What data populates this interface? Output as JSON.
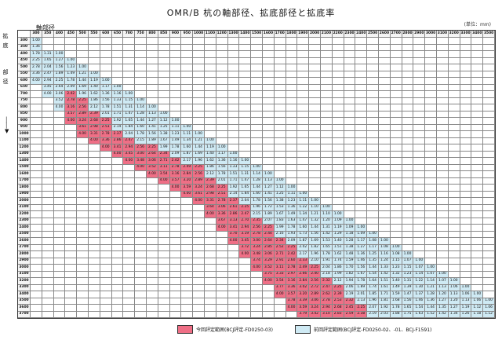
{
  "title": "OMR/B 杭の軸部径、拡底部径と拡底率",
  "unit": "(単位：mm)",
  "axis": {
    "shaft": "軸部径",
    "side_a": "拡底",
    "side_b": "部径"
  },
  "columns": [
    "300",
    "350",
    "400",
    "450",
    "500",
    "550",
    "600",
    "650",
    "700",
    "750",
    "800",
    "850",
    "900",
    "950",
    "1000",
    "1100",
    "1200",
    "1300",
    "1400",
    "1500",
    "1600",
    "1700",
    "1800",
    "1900",
    "2000",
    "2100",
    "2200",
    "2300",
    "2400",
    "2500",
    "2600",
    "2700",
    "2800",
    "2900",
    "3000",
    "3100",
    "3200",
    "3300",
    "3400",
    "3500"
  ],
  "rows": [
    {
      "d": "300",
      "v": [
        "1.00"
      ]
    },
    {
      "d": "350",
      "v": [
        "1.36"
      ]
    },
    {
      "d": "400",
      "v": [
        "1.78",
        "1.31",
        "1.00"
      ]
    },
    {
      "d": "450",
      "v": [
        "2.25",
        "1.65",
        "1.27",
        "1.00"
      ]
    },
    {
      "d": "500",
      "v": [
        "2.78",
        "2.04",
        "1.56",
        "1.23",
        "1.00"
      ]
    },
    {
      "d": "550",
      "v": [
        "3.36",
        "2.47",
        "1.89",
        "1.49",
        "1.21",
        "1.00"
      ]
    },
    {
      "d": "600",
      "v": [
        "4.00",
        "2.94",
        "2.25",
        "1.78",
        "1.44",
        "1.19",
        "1.00"
      ]
    },
    {
      "d": "650",
      "v": [
        "",
        "3.45",
        "2.64",
        "2.09",
        "1.69",
        "1.40",
        "1.17",
        "1.00"
      ]
    },
    {
      "d": "700",
      "v": [
        "",
        "4.00",
        "3.06",
        "2.42",
        "1.96",
        "1.62",
        "1.36",
        "1.16",
        "1.00"
      ]
    },
    {
      "d": "750",
      "v": [
        "",
        "",
        "3.52",
        "2.78",
        "2.25",
        "1.86",
        "1.56",
        "1.33",
        "1.15",
        "1.00"
      ]
    },
    {
      "d": "800",
      "v": [
        "",
        "",
        "4.00",
        "3.16",
        "2.56",
        "2.12",
        "1.78",
        "1.51",
        "1.31",
        "1.14",
        "1.00"
      ]
    },
    {
      "d": "850",
      "v": [
        "",
        "",
        "",
        "3.57",
        "2.89",
        "2.39",
        "2.01",
        "1.71",
        "1.47",
        "1.28",
        "1.13",
        "1.00"
      ]
    },
    {
      "d": "900",
      "v": [
        "",
        "",
        "",
        "4.00",
        "3.24",
        "2.68",
        "2.25",
        "1.92",
        "1.65",
        "1.44",
        "1.27",
        "1.12",
        "1.00"
      ]
    },
    {
      "d": "950",
      "v": [
        "",
        "",
        "",
        "",
        "3.61",
        "2.98",
        "2.51",
        "2.14",
        "1.84",
        "1.60",
        "1.41",
        "1.25",
        "1.11",
        "1.00"
      ]
    },
    {
      "d": "1000",
      "v": [
        "",
        "",
        "",
        "",
        "4.00",
        "3.31",
        "2.78",
        "2.37",
        "2.04",
        "1.78",
        "1.56",
        "1.38",
        "1.23",
        "1.11",
        "1.00"
      ]
    },
    {
      "d": "1100",
      "v": [
        "",
        "",
        "",
        "",
        "",
        "4.00",
        "3.36",
        "2.86",
        "2.47",
        "2.15",
        "1.89",
        "1.67",
        "1.49",
        "1.34",
        "1.21",
        "1.00"
      ]
    },
    {
      "d": "1200",
      "v": [
        "",
        "",
        "",
        "",
        "",
        "",
        "4.00",
        "3.41",
        "2.94",
        "2.56",
        "2.25",
        "1.99",
        "1.78",
        "1.60",
        "1.44",
        "1.19",
        "1.00"
      ]
    },
    {
      "d": "1300",
      "v": [
        "",
        "",
        "",
        "",
        "",
        "",
        "",
        "4.00",
        "3.45",
        "3.00",
        "2.64",
        "2.34",
        "2.09",
        "1.87",
        "1.69",
        "1.40",
        "1.17",
        "1.00"
      ]
    },
    {
      "d": "1400",
      "v": [
        "",
        "",
        "",
        "",
        "",
        "",
        "",
        "",
        "4.00",
        "3.48",
        "3.06",
        "2.71",
        "2.42",
        "2.17",
        "1.96",
        "1.62",
        "1.36",
        "1.16",
        "1.00"
      ]
    },
    {
      "d": "1500",
      "v": [
        "",
        "",
        "",
        "",
        "",
        "",
        "",
        "",
        "",
        "4.00",
        "3.52",
        "3.11",
        "2.78",
        "2.49",
        "2.25",
        "1.86",
        "1.56",
        "1.33",
        "1.15",
        "1.00"
      ]
    },
    {
      "d": "1600",
      "v": [
        "",
        "",
        "",
        "",
        "",
        "",
        "",
        "",
        "",
        "",
        "4.00",
        "3.54",
        "3.16",
        "2.84",
        "2.56",
        "2.12",
        "1.78",
        "1.51",
        "1.31",
        "1.14",
        "1.00"
      ]
    },
    {
      "d": "1700",
      "v": [
        "",
        "",
        "",
        "",
        "",
        "",
        "",
        "",
        "",
        "",
        "",
        "4.00",
        "3.57",
        "3.20",
        "2.89",
        "2.39",
        "2.01",
        "1.71",
        "1.47",
        "1.28",
        "1.13",
        "1.00"
      ]
    },
    {
      "d": "1800",
      "v": [
        "",
        "",
        "",
        "",
        "",
        "",
        "",
        "",
        "",
        "",
        "",
        "",
        "4.00",
        "3.59",
        "3.24",
        "2.68",
        "2.25",
        "1.92",
        "1.65",
        "1.44",
        "1.27",
        "1.12",
        "1.00"
      ]
    },
    {
      "d": "1900",
      "v": [
        "",
        "",
        "",
        "",
        "",
        "",
        "",
        "",
        "",
        "",
        "",
        "",
        "",
        "4.00",
        "3.61",
        "2.98",
        "2.51",
        "2.14",
        "1.84",
        "1.60",
        "1.41",
        "1.25",
        "1.11",
        "1.00"
      ]
    },
    {
      "d": "2000",
      "v": [
        "",
        "",
        "",
        "",
        "",
        "",
        "",
        "",
        "",
        "",
        "",
        "",
        "",
        "",
        "4.00",
        "3.31",
        "2.78",
        "2.37",
        "2.04",
        "1.78",
        "1.56",
        "1.38",
        "1.23",
        "1.11",
        "1.00"
      ]
    },
    {
      "d": "2100",
      "v": [
        "",
        "",
        "",
        "",
        "",
        "",
        "",
        "",
        "",
        "",
        "",
        "",
        "",
        "",
        "",
        "3.64",
        "3.06",
        "2.61",
        "2.25",
        "1.96",
        "1.72",
        "1.53",
        "1.36",
        "1.22",
        "1.10",
        "1.00"
      ]
    },
    {
      "d": "2200",
      "v": [
        "",
        "",
        "",
        "",
        "",
        "",
        "",
        "",
        "",
        "",
        "",
        "",
        "",
        "",
        "",
        "4.00",
        "3.36",
        "2.86",
        "2.47",
        "2.15",
        "1.89",
        "1.67",
        "1.49",
        "1.34",
        "1.21",
        "1.10",
        "1.00"
      ]
    },
    {
      "d": "2300",
      "v": [
        "",
        "",
        "",
        "",
        "",
        "",
        "",
        "",
        "",
        "",
        "",
        "",
        "",
        "",
        "",
        "",
        "3.67",
        "3.13",
        "2.70",
        "2.35",
        "2.07",
        "1.83",
        "1.63",
        "1.47",
        "1.32",
        "1.20",
        "1.09",
        "1.00"
      ]
    },
    {
      "d": "2400",
      "v": [
        "",
        "",
        "",
        "",
        "",
        "",
        "",
        "",
        "",
        "",
        "",
        "",
        "",
        "",
        "",
        "",
        "4.00",
        "3.41",
        "2.94",
        "2.56",
        "2.25",
        "1.99",
        "1.78",
        "1.60",
        "1.44",
        "1.31",
        "1.19",
        "1.09",
        "1.00"
      ]
    },
    {
      "d": "2500",
      "v": [
        "",
        "",
        "",
        "",
        "",
        "",
        "",
        "",
        "",
        "",
        "",
        "",
        "",
        "",
        "",
        "",
        "",
        "3.70",
        "3.19",
        "2.78",
        "2.44",
        "2.16",
        "1.93",
        "1.73",
        "1.56",
        "1.42",
        "1.29",
        "1.18",
        "1.09",
        "1.00"
      ]
    },
    {
      "d": "2600",
      "v": [
        "",
        "",
        "",
        "",
        "",
        "",
        "",
        "",
        "",
        "",
        "",
        "",
        "",
        "",
        "",
        "",
        "",
        "4.00",
        "3.45",
        "3.00",
        "2.64",
        "2.34",
        "2.09",
        "1.87",
        "1.69",
        "1.53",
        "1.40",
        "1.28",
        "1.17",
        "1.08",
        "1.00"
      ]
    },
    {
      "d": "2700",
      "v": [
        "",
        "",
        "",
        "",
        "",
        "",
        "",
        "",
        "",
        "",
        "",
        "",
        "",
        "",
        "",
        "",
        "",
        "",
        "3.72",
        "3.24",
        "2.85",
        "2.52",
        "2.25",
        "2.02",
        "1.82",
        "1.65",
        "1.51",
        "1.38",
        "1.27",
        "1.17",
        "1.08",
        "1.00"
      ]
    },
    {
      "d": "2800",
      "v": [
        "",
        "",
        "",
        "",
        "",
        "",
        "",
        "",
        "",
        "",
        "",
        "",
        "",
        "",
        "",
        "",
        "",
        "",
        "4.00",
        "3.48",
        "3.06",
        "2.71",
        "2.42",
        "2.17",
        "1.96",
        "1.78",
        "1.62",
        "1.48",
        "1.36",
        "1.25",
        "1.16",
        "1.08",
        "1.00"
      ]
    },
    {
      "d": "2900",
      "v": [
        "",
        "",
        "",
        "",
        "",
        "",
        "",
        "",
        "",
        "",
        "",
        "",
        "",
        "",
        "",
        "",
        "",
        "",
        "",
        "3.74",
        "3.29",
        "2.91",
        "2.60",
        "2.33",
        "2.10",
        "1.91",
        "1.74",
        "1.59",
        "1.46",
        "1.35",
        "1.24",
        "1.15",
        "1.07",
        "1.00"
      ]
    },
    {
      "d": "3000",
      "v": [
        "",
        "",
        "",
        "",
        "",
        "",
        "",
        "",
        "",
        "",
        "",
        "",
        "",
        "",
        "",
        "",
        "",
        "",
        "",
        "4.00",
        "3.52",
        "3.11",
        "2.78",
        "2.49",
        "2.25",
        "2.04",
        "1.86",
        "1.70",
        "1.56",
        "1.44",
        "1.33",
        "1.23",
        "1.15",
        "1.07",
        "1.00"
      ]
    },
    {
      "d": "3100",
      "v": [
        "",
        "",
        "",
        "",
        "",
        "",
        "",
        "",
        "",
        "",
        "",
        "",
        "",
        "",
        "",
        "",
        "",
        "",
        "",
        "",
        "3.75",
        "3.33",
        "2.97",
        "2.66",
        "2.40",
        "2.18",
        "1.99",
        "1.82",
        "1.67",
        "1.54",
        "1.42",
        "1.32",
        "1.23",
        "1.14",
        "1.07",
        "1.00"
      ]
    },
    {
      "d": "3200",
      "v": [
        "",
        "",
        "",
        "",
        "",
        "",
        "",
        "",
        "",
        "",
        "",
        "",
        "",
        "",
        "",
        "",
        "",
        "",
        "",
        "",
        "4.00",
        "3.54",
        "3.16",
        "2.84",
        "2.56",
        "2.32",
        "2.12",
        "1.94",
        "1.78",
        "1.64",
        "1.51",
        "1.40",
        "1.31",
        "1.22",
        "1.14",
        "1.07",
        "1.00"
      ]
    },
    {
      "d": "3300",
      "v": [
        "",
        "",
        "",
        "",
        "",
        "",
        "",
        "",
        "",
        "",
        "",
        "",
        "",
        "",
        "",
        "",
        "",
        "",
        "",
        "",
        "",
        "3.77",
        "3.36",
        "3.02",
        "2.72",
        "2.47",
        "2.25",
        "2.06",
        "1.89",
        "1.74",
        "1.61",
        "1.49",
        "1.39",
        "1.30",
        "1.21",
        "1.13",
        "1.06",
        "1.00"
      ]
    },
    {
      "d": "3400",
      "v": [
        "",
        "",
        "",
        "",
        "",
        "",
        "",
        "",
        "",
        "",
        "",
        "",
        "",
        "",
        "",
        "",
        "",
        "",
        "",
        "",
        "",
        "4.00",
        "3.57",
        "3.20",
        "2.89",
        "2.62",
        "2.39",
        "2.19",
        "2.01",
        "1.85",
        "1.71",
        "1.59",
        "1.47",
        "1.37",
        "1.28",
        "1.20",
        "1.13",
        "1.06",
        "1.00"
      ]
    },
    {
      "d": "3500",
      "v": [
        "",
        "",
        "",
        "",
        "",
        "",
        "",
        "",
        "",
        "",
        "",
        "",
        "",
        "",
        "",
        "",
        "",
        "",
        "",
        "",
        "",
        "",
        "3.78",
        "3.39",
        "3.06",
        "2.78",
        "2.53",
        "2.32",
        "2.13",
        "1.96",
        "1.81",
        "1.68",
        "1.56",
        "1.46",
        "1.36",
        "1.27",
        "1.20",
        "1.13",
        "1.06",
        "1.00"
      ]
    },
    {
      "d": "3600",
      "v": [
        "",
        "",
        "",
        "",
        "",
        "",
        "",
        "",
        "",
        "",
        "",
        "",
        "",
        "",
        "",
        "",
        "",
        "",
        "",
        "",
        "",
        "",
        "4.00",
        "3.59",
        "3.24",
        "2.94",
        "2.68",
        "2.45",
        "2.25",
        "2.07",
        "1.92",
        "1.78",
        "1.65",
        "1.54",
        "1.44",
        "1.35",
        "1.27",
        "1.19",
        "1.12",
        "1.06"
      ]
    },
    {
      "d": "3700",
      "v": [
        "",
        "",
        "",
        "",
        "",
        "",
        "",
        "",
        "",
        "",
        "",
        "",
        "",
        "",
        "",
        "",
        "",
        "",
        "",
        "",
        "",
        "",
        "",
        "3.79",
        "3.42",
        "3.10",
        "2.83",
        "2.59",
        "2.38",
        "2.19",
        "2.03",
        "1.88",
        "1.75",
        "1.63",
        "1.52",
        "1.42",
        "1.34",
        "1.26",
        "1.18",
        "1.12"
      ]
    }
  ],
  "legend": {
    "red_label": "今回評定範囲(BCJ評定-FD0250-03)",
    "blue_label": "前回評定範囲(BCJ評定-FD0250-02、-01、BCJ-F1591)",
    "red_color": "#ef6f86",
    "blue_color": "#cfeaf4"
  }
}
